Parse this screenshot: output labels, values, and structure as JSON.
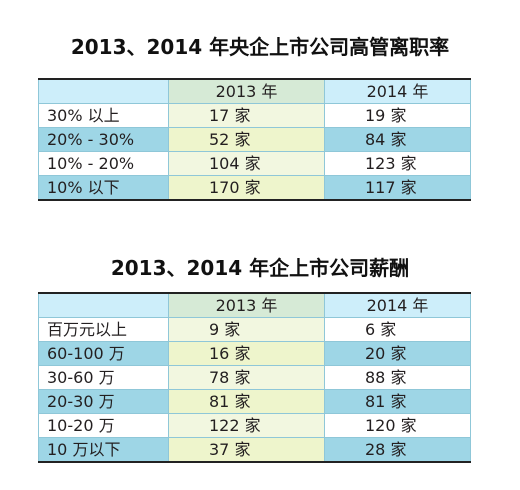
{
  "table1": {
    "title": "2013、2014 年央企上市公司高管离职率",
    "headers": [
      "",
      "2013 年",
      "2014 年"
    ],
    "rows": [
      [
        "30% 以上",
        "17 家",
        "19 家"
      ],
      [
        "20% - 30%",
        "52 家",
        "84 家"
      ],
      [
        "10% - 20%",
        "104 家",
        "123 家"
      ],
      [
        "10% 以下",
        "170 家",
        "117 家"
      ]
    ]
  },
  "table2": {
    "title": "2013、2014 年企上市公司薪酬",
    "headers": [
      "",
      "2013 年",
      "2014 年"
    ],
    "rows": [
      [
        "百万元以上",
        "9 家",
        "6 家"
      ],
      [
        "60-100 万",
        "16 家",
        "20 家"
      ],
      [
        "30-60 万",
        "78 家",
        "88 家"
      ],
      [
        "20-30 万",
        "81 家",
        "81 家"
      ],
      [
        "10-20 万",
        "122 家",
        "120 家"
      ],
      [
        "10 万以下",
        "37 家",
        "28 家"
      ]
    ]
  }
}
